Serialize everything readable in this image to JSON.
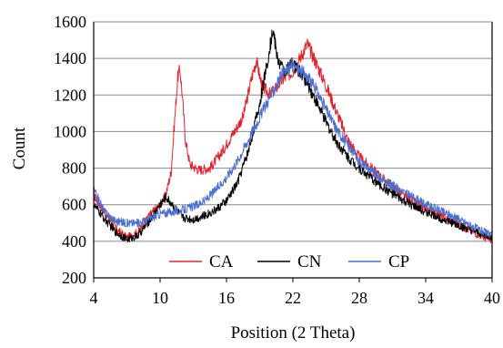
{
  "chart_data": {
    "type": "line",
    "title": "",
    "xlabel": "Position (2 Theta)",
    "ylabel": "Count",
    "xlim": [
      4,
      40
    ],
    "ylim": [
      200,
      1600
    ],
    "x_ticks": [
      "4",
      "10",
      "16",
      "22",
      "28",
      "34",
      "40"
    ],
    "y_ticks": [
      "200",
      "400",
      "600",
      "800",
      "1000",
      "1200",
      "1400",
      "1600"
    ],
    "grid": "horizontal",
    "legend_position": "bottom-inside",
    "series": [
      {
        "name": "CA",
        "color": "#e8202a",
        "points": [
          [
            4,
            650
          ],
          [
            5,
            560
          ],
          [
            6,
            470
          ],
          [
            7,
            420
          ],
          [
            8,
            450
          ],
          [
            9,
            540
          ],
          [
            10,
            600
          ],
          [
            10.5,
            650
          ],
          [
            11,
            780
          ],
          [
            11.3,
            1050
          ],
          [
            11.6,
            1300
          ],
          [
            11.8,
            1340
          ],
          [
            12.0,
            1200
          ],
          [
            12.3,
            950
          ],
          [
            12.7,
            820
          ],
          [
            13.5,
            790
          ],
          [
            14.5,
            800
          ],
          [
            15.5,
            880
          ],
          [
            16.5,
            980
          ],
          [
            17.5,
            1080
          ],
          [
            18.3,
            1300
          ],
          [
            18.7,
            1390
          ],
          [
            19.2,
            1250
          ],
          [
            20,
            1200
          ],
          [
            21,
            1280
          ],
          [
            22,
            1330
          ],
          [
            22.8,
            1420
          ],
          [
            23.3,
            1480
          ],
          [
            24,
            1390
          ],
          [
            25,
            1250
          ],
          [
            26,
            1100
          ],
          [
            27,
            950
          ],
          [
            28,
            860
          ],
          [
            30,
            750
          ],
          [
            32,
            650
          ],
          [
            34,
            580
          ],
          [
            36,
            520
          ],
          [
            38,
            460
          ],
          [
            40,
            400
          ]
        ]
      },
      {
        "name": "CN",
        "color": "#000000",
        "points": [
          [
            4,
            600
          ],
          [
            5,
            520
          ],
          [
            6,
            450
          ],
          [
            7,
            410
          ],
          [
            8,
            430
          ],
          [
            9,
            510
          ],
          [
            10,
            600
          ],
          [
            10.5,
            640
          ],
          [
            11,
            610
          ],
          [
            12,
            530
          ],
          [
            13,
            520
          ],
          [
            14,
            540
          ],
          [
            15,
            570
          ],
          [
            16,
            620
          ],
          [
            17,
            720
          ],
          [
            18,
            900
          ],
          [
            19,
            1150
          ],
          [
            19.8,
            1420
          ],
          [
            20.2,
            1560
          ],
          [
            20.6,
            1400
          ],
          [
            21.2,
            1330
          ],
          [
            22,
            1370
          ],
          [
            23,
            1300
          ],
          [
            24,
            1180
          ],
          [
            25,
            1050
          ],
          [
            26,
            940
          ],
          [
            27,
            860
          ],
          [
            28,
            800
          ],
          [
            30,
            700
          ],
          [
            32,
            620
          ],
          [
            34,
            560
          ],
          [
            36,
            510
          ],
          [
            38,
            460
          ],
          [
            40,
            420
          ]
        ]
      },
      {
        "name": "CP",
        "color": "#4a6fd0",
        "points": [
          [
            4,
            680
          ],
          [
            5,
            560
          ],
          [
            6,
            510
          ],
          [
            7,
            500
          ],
          [
            8,
            500
          ],
          [
            9,
            520
          ],
          [
            10,
            550
          ],
          [
            11,
            560
          ],
          [
            12,
            570
          ],
          [
            13,
            590
          ],
          [
            14,
            620
          ],
          [
            15,
            680
          ],
          [
            16,
            750
          ],
          [
            17,
            840
          ],
          [
            18,
            960
          ],
          [
            19,
            1080
          ],
          [
            20,
            1200
          ],
          [
            21,
            1310
          ],
          [
            22,
            1360
          ],
          [
            23,
            1320
          ],
          [
            24,
            1240
          ],
          [
            25,
            1120
          ],
          [
            26,
            1010
          ],
          [
            27,
            920
          ],
          [
            28,
            840
          ],
          [
            30,
            740
          ],
          [
            32,
            670
          ],
          [
            34,
            600
          ],
          [
            36,
            550
          ],
          [
            38,
            490
          ],
          [
            40,
            430
          ]
        ]
      }
    ]
  }
}
